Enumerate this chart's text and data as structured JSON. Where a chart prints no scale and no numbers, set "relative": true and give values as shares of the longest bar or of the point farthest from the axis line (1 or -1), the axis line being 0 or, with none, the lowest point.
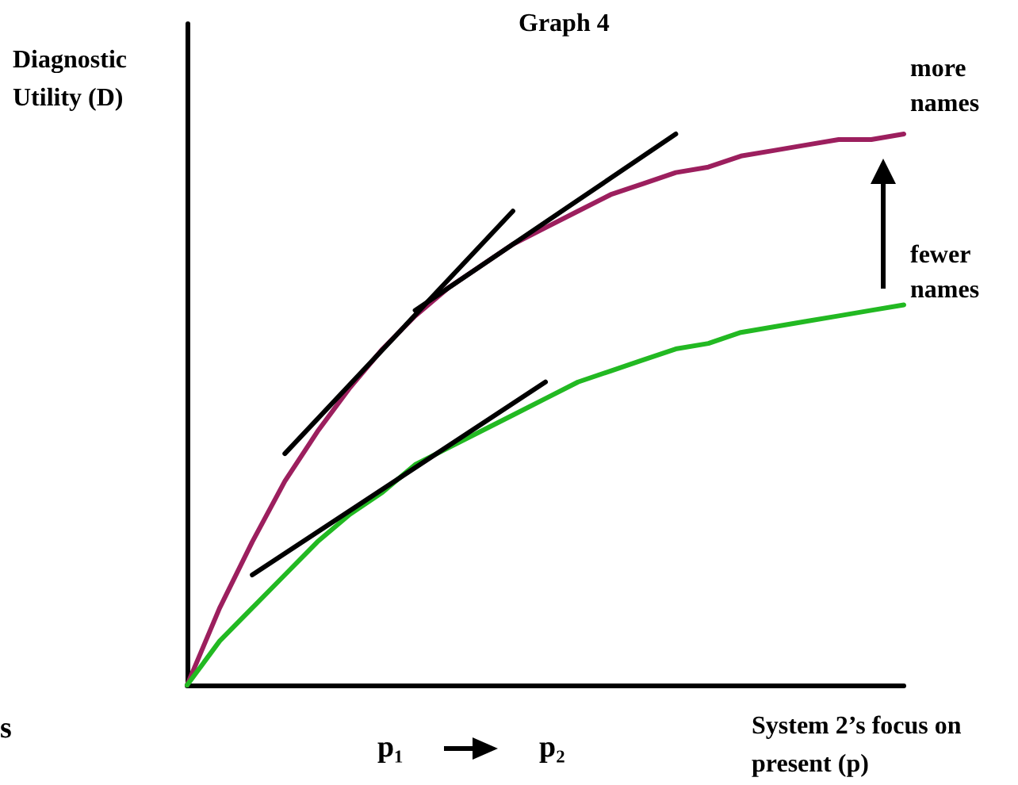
{
  "chart_data": {
    "type": "line",
    "title": "Graph 4",
    "ylabel": "Diagnostic Utility (D)",
    "xlabel": "System 2’s focus on present (p)",
    "relative": true,
    "legend": false,
    "grid": false,
    "marker": "none",
    "annotations": [
      "p₁",
      "p₂",
      "s"
    ],
    "categories": [
      null,
      null,
      null,
      null,
      null,
      null,
      null,
      null,
      null,
      null,
      null,
      null,
      null,
      null,
      null,
      null,
      null,
      null,
      null,
      null,
      null,
      null,
      null
    ],
    "series": [
      {
        "name": "more names",
        "color": "#9c1f5e",
        "values": [
          0,
          0.14,
          0.26,
          0.37,
          0.46,
          0.54,
          0.61,
          0.67,
          0.72,
          0.76,
          0.8,
          0.83,
          0.86,
          0.89,
          0.91,
          0.93,
          0.94,
          0.96,
          0.97,
          0.98,
          0.99,
          0.99,
          1
        ]
      },
      {
        "name": "fewer names",
        "color": "#22b922",
        "values": [
          0,
          0.08,
          0.14,
          0.2,
          0.26,
          0.31,
          0.35,
          0.4,
          0.43,
          0.46,
          0.49,
          0.52,
          0.55,
          0.57,
          0.59,
          0.61,
          0.62,
          0.64,
          0.65,
          0.66,
          0.67,
          0.68,
          0.69
        ]
      },
      {
        "color": "#000000",
        "values": [
          null,
          null,
          null,
          0.42,
          null,
          null,
          null,
          null,
          null,
          null,
          0.86,
          null,
          null,
          null,
          null,
          null,
          null,
          null,
          null,
          null,
          null,
          null,
          null
        ]
      },
      {
        "color": "#000000",
        "values": [
          null,
          null,
          null,
          null,
          null,
          null,
          null,
          0.68,
          null,
          null,
          null,
          null,
          null,
          null,
          null,
          1,
          null,
          null,
          null,
          null,
          null,
          null,
          null
        ]
      },
      {
        "color": "#000000",
        "values": [
          null,
          null,
          0.2,
          null,
          null,
          null,
          null,
          null,
          null,
          null,
          null,
          0.55,
          null,
          null,
          null,
          null,
          null,
          null,
          null,
          null,
          null,
          null,
          null
        ]
      }
    ]
  }
}
